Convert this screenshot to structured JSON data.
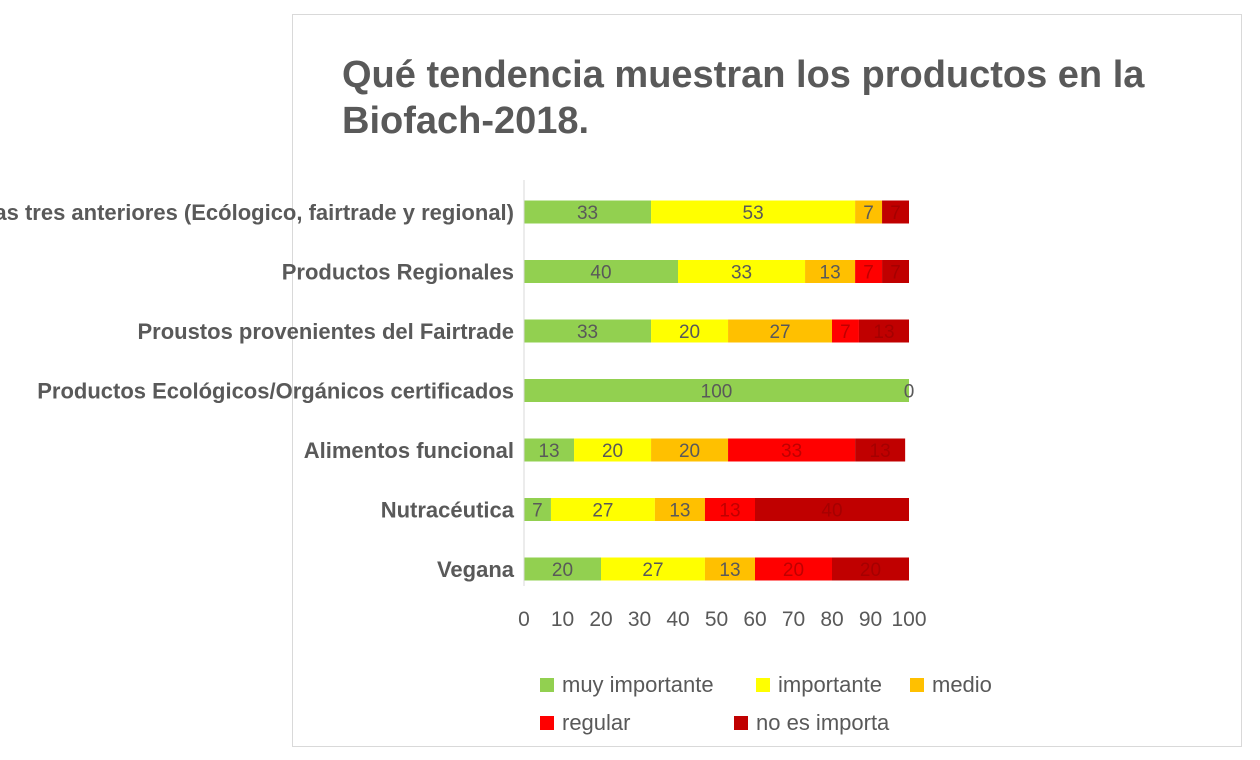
{
  "chart_data": {
    "type": "bar",
    "orientation": "horizontal",
    "stacked": true,
    "title": "Qué tendencia muestran los productos en la Biofach-2018.",
    "xlabel": "",
    "ylabel": "",
    "xlim": [
      0,
      100
    ],
    "xticks": [
      "0",
      "10",
      "20",
      "30",
      "40",
      "50",
      "60",
      "70",
      "80",
      "90",
      "100"
    ],
    "categories": [
      "Las tres anteriores (Ecólogico, fairtrade y regional)",
      "Productos Regionales",
      "Proustos provenientes del Fairtrade",
      "Productos Ecológicos/Orgánicos certificados",
      "Alimentos funcional",
      "Nutracéutica",
      "Vegana"
    ],
    "series": [
      {
        "name": "muy importante",
        "color": "#92D050",
        "values": [
          33,
          40,
          33,
          100,
          13,
          7,
          20
        ]
      },
      {
        "name": "importante",
        "color": "#FFFF00",
        "values": [
          53,
          33,
          20,
          0,
          20,
          27,
          27
        ]
      },
      {
        "name": "medio",
        "color": "#FFC000",
        "values": [
          7,
          13,
          27,
          0,
          20,
          13,
          13
        ]
      },
      {
        "name": "regular",
        "color": "#FF0000",
        "values": [
          0,
          7,
          7,
          0,
          33,
          13,
          20
        ]
      },
      {
        "name": "no es importa",
        "color": "#C00000",
        "values": [
          7,
          7,
          13,
          0,
          13,
          40,
          20
        ]
      }
    ],
    "legend_position": "bottom",
    "grid": false
  }
}
